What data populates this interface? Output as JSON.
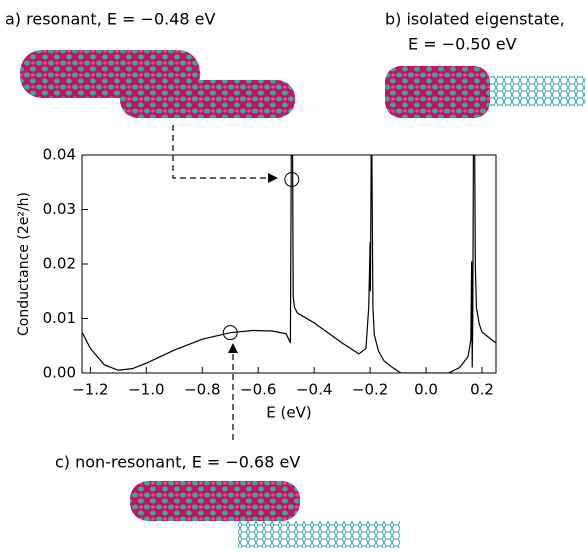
{
  "chart_data": {
    "type": "line",
    "xlabel": "E (eV)",
    "ylabel": "Conductance (2e²/h)",
    "annotations": [
      "a) resonant, E = −0.48 eV",
      "b) isolated eigenstate,",
      "E = −0.50 eV",
      "c) non-resonant, E = −0.68 eV"
    ],
    "xlim": [
      -1.23,
      0.25
    ],
    "ylim": [
      0,
      0.04
    ],
    "xticks": [
      {
        "value": -1.2,
        "label": "−1.2"
      },
      {
        "value": -1.0,
        "label": "−1.0"
      },
      {
        "value": -0.8,
        "label": "−0.8"
      },
      {
        "value": -0.6,
        "label": "−0.6"
      },
      {
        "value": -0.4,
        "label": "−0.4"
      },
      {
        "value": -0.2,
        "label": "−0.2"
      },
      {
        "value": 0.0,
        "label": "0.0"
      },
      {
        "value": 0.2,
        "label": "0.2"
      }
    ],
    "yticks": [
      {
        "value": 0,
        "label": "0.00"
      },
      0.01,
      0.02,
      0.03,
      0.04
    ],
    "series": [
      {
        "color": "#000000",
        "x": [
          -1.23,
          -1.2,
          -1.15,
          -1.1,
          -1.05,
          -1.0,
          -0.9,
          -0.8,
          -0.7,
          -0.62,
          -0.55,
          -0.5,
          -0.485,
          -0.481,
          -0.478,
          -0.475,
          -0.47,
          -0.46,
          -0.4,
          -0.3,
          -0.24,
          -0.215,
          -0.205,
          -0.2,
          -0.199,
          -0.195,
          -0.19,
          -0.185,
          -0.17,
          -0.15,
          -0.12,
          -0.09,
          0.0,
          0.08,
          0.12,
          0.15,
          0.16,
          0.163,
          0.165,
          0.167,
          0.17,
          0.173,
          0.176,
          0.18,
          0.19,
          0.2,
          0.25
        ],
        "values": [
          0.0075,
          0.0045,
          0.0015,
          0.0005,
          0.0008,
          0.0018,
          0.0042,
          0.0062,
          0.0074,
          0.0078,
          0.0077,
          0.0072,
          0.0055,
          0.05,
          0.05,
          0.014,
          0.012,
          0.011,
          0.0092,
          0.0055,
          0.0035,
          0.0045,
          0.012,
          0.024,
          0.015,
          0.05,
          0.012,
          0.007,
          0.004,
          0.0022,
          0.001,
          0.0,
          0.0,
          0.0,
          0.001,
          0.003,
          0.006,
          0.0205,
          0.001,
          0.01,
          0.05,
          0.05,
          0.02,
          0.012,
          0.009,
          0.0075,
          0.0055
        ]
      }
    ],
    "markers": {
      "x": [
        -0.48,
        -0.7
      ],
      "y": [
        0.0355,
        0.0074
      ]
    }
  }
}
